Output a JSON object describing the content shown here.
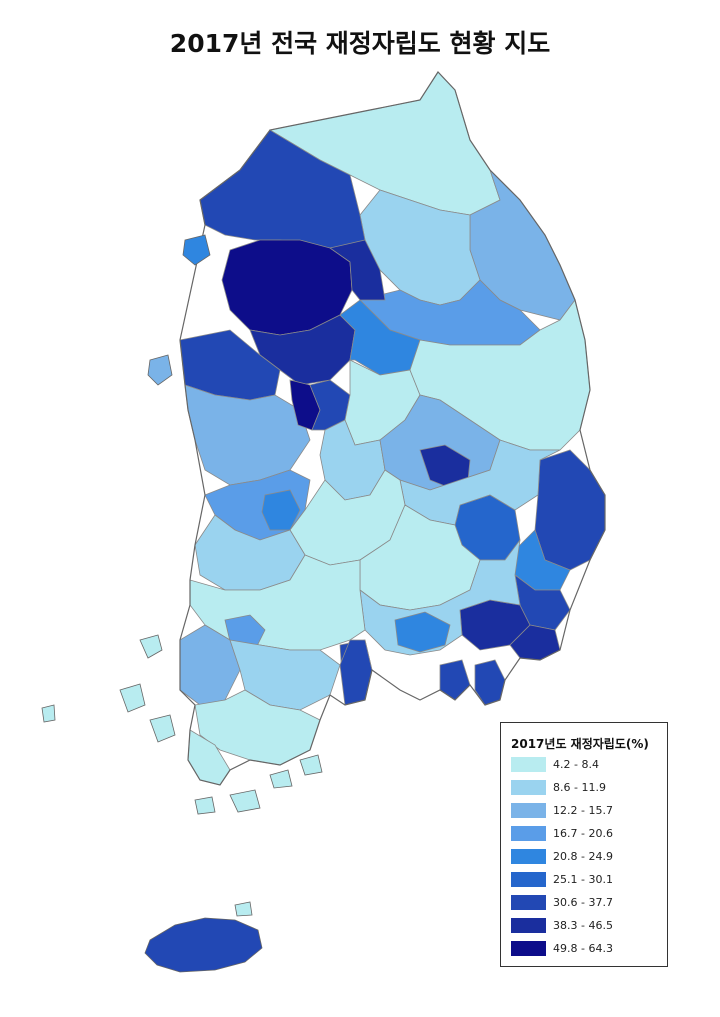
{
  "title": "2017년 전국 재정자립도 현황 지도",
  "legend": {
    "title": "2017년도 재정자립도(%)",
    "classes": [
      {
        "label": "4.2 - 8.4",
        "color": "#b8ecf0"
      },
      {
        "label": "8.6 - 11.9",
        "color": "#9ad3ef"
      },
      {
        "label": "12.2 - 15.7",
        "color": "#7ab3e8"
      },
      {
        "label": "16.7 - 20.6",
        "color": "#5a9de8"
      },
      {
        "label": "20.8 - 24.9",
        "color": "#2f86e0"
      },
      {
        "label": "25.1 - 30.1",
        "color": "#2566cc"
      },
      {
        "label": "30.6 - 37.7",
        "color": "#2248b4"
      },
      {
        "label": "38.3 - 46.5",
        "color": "#1a2e9e"
      },
      {
        "label": "49.8 - 64.3",
        "color": "#0d0d8a"
      }
    ]
  },
  "colors": {
    "boundary": "#8a8a8a",
    "outline": "#666666"
  }
}
